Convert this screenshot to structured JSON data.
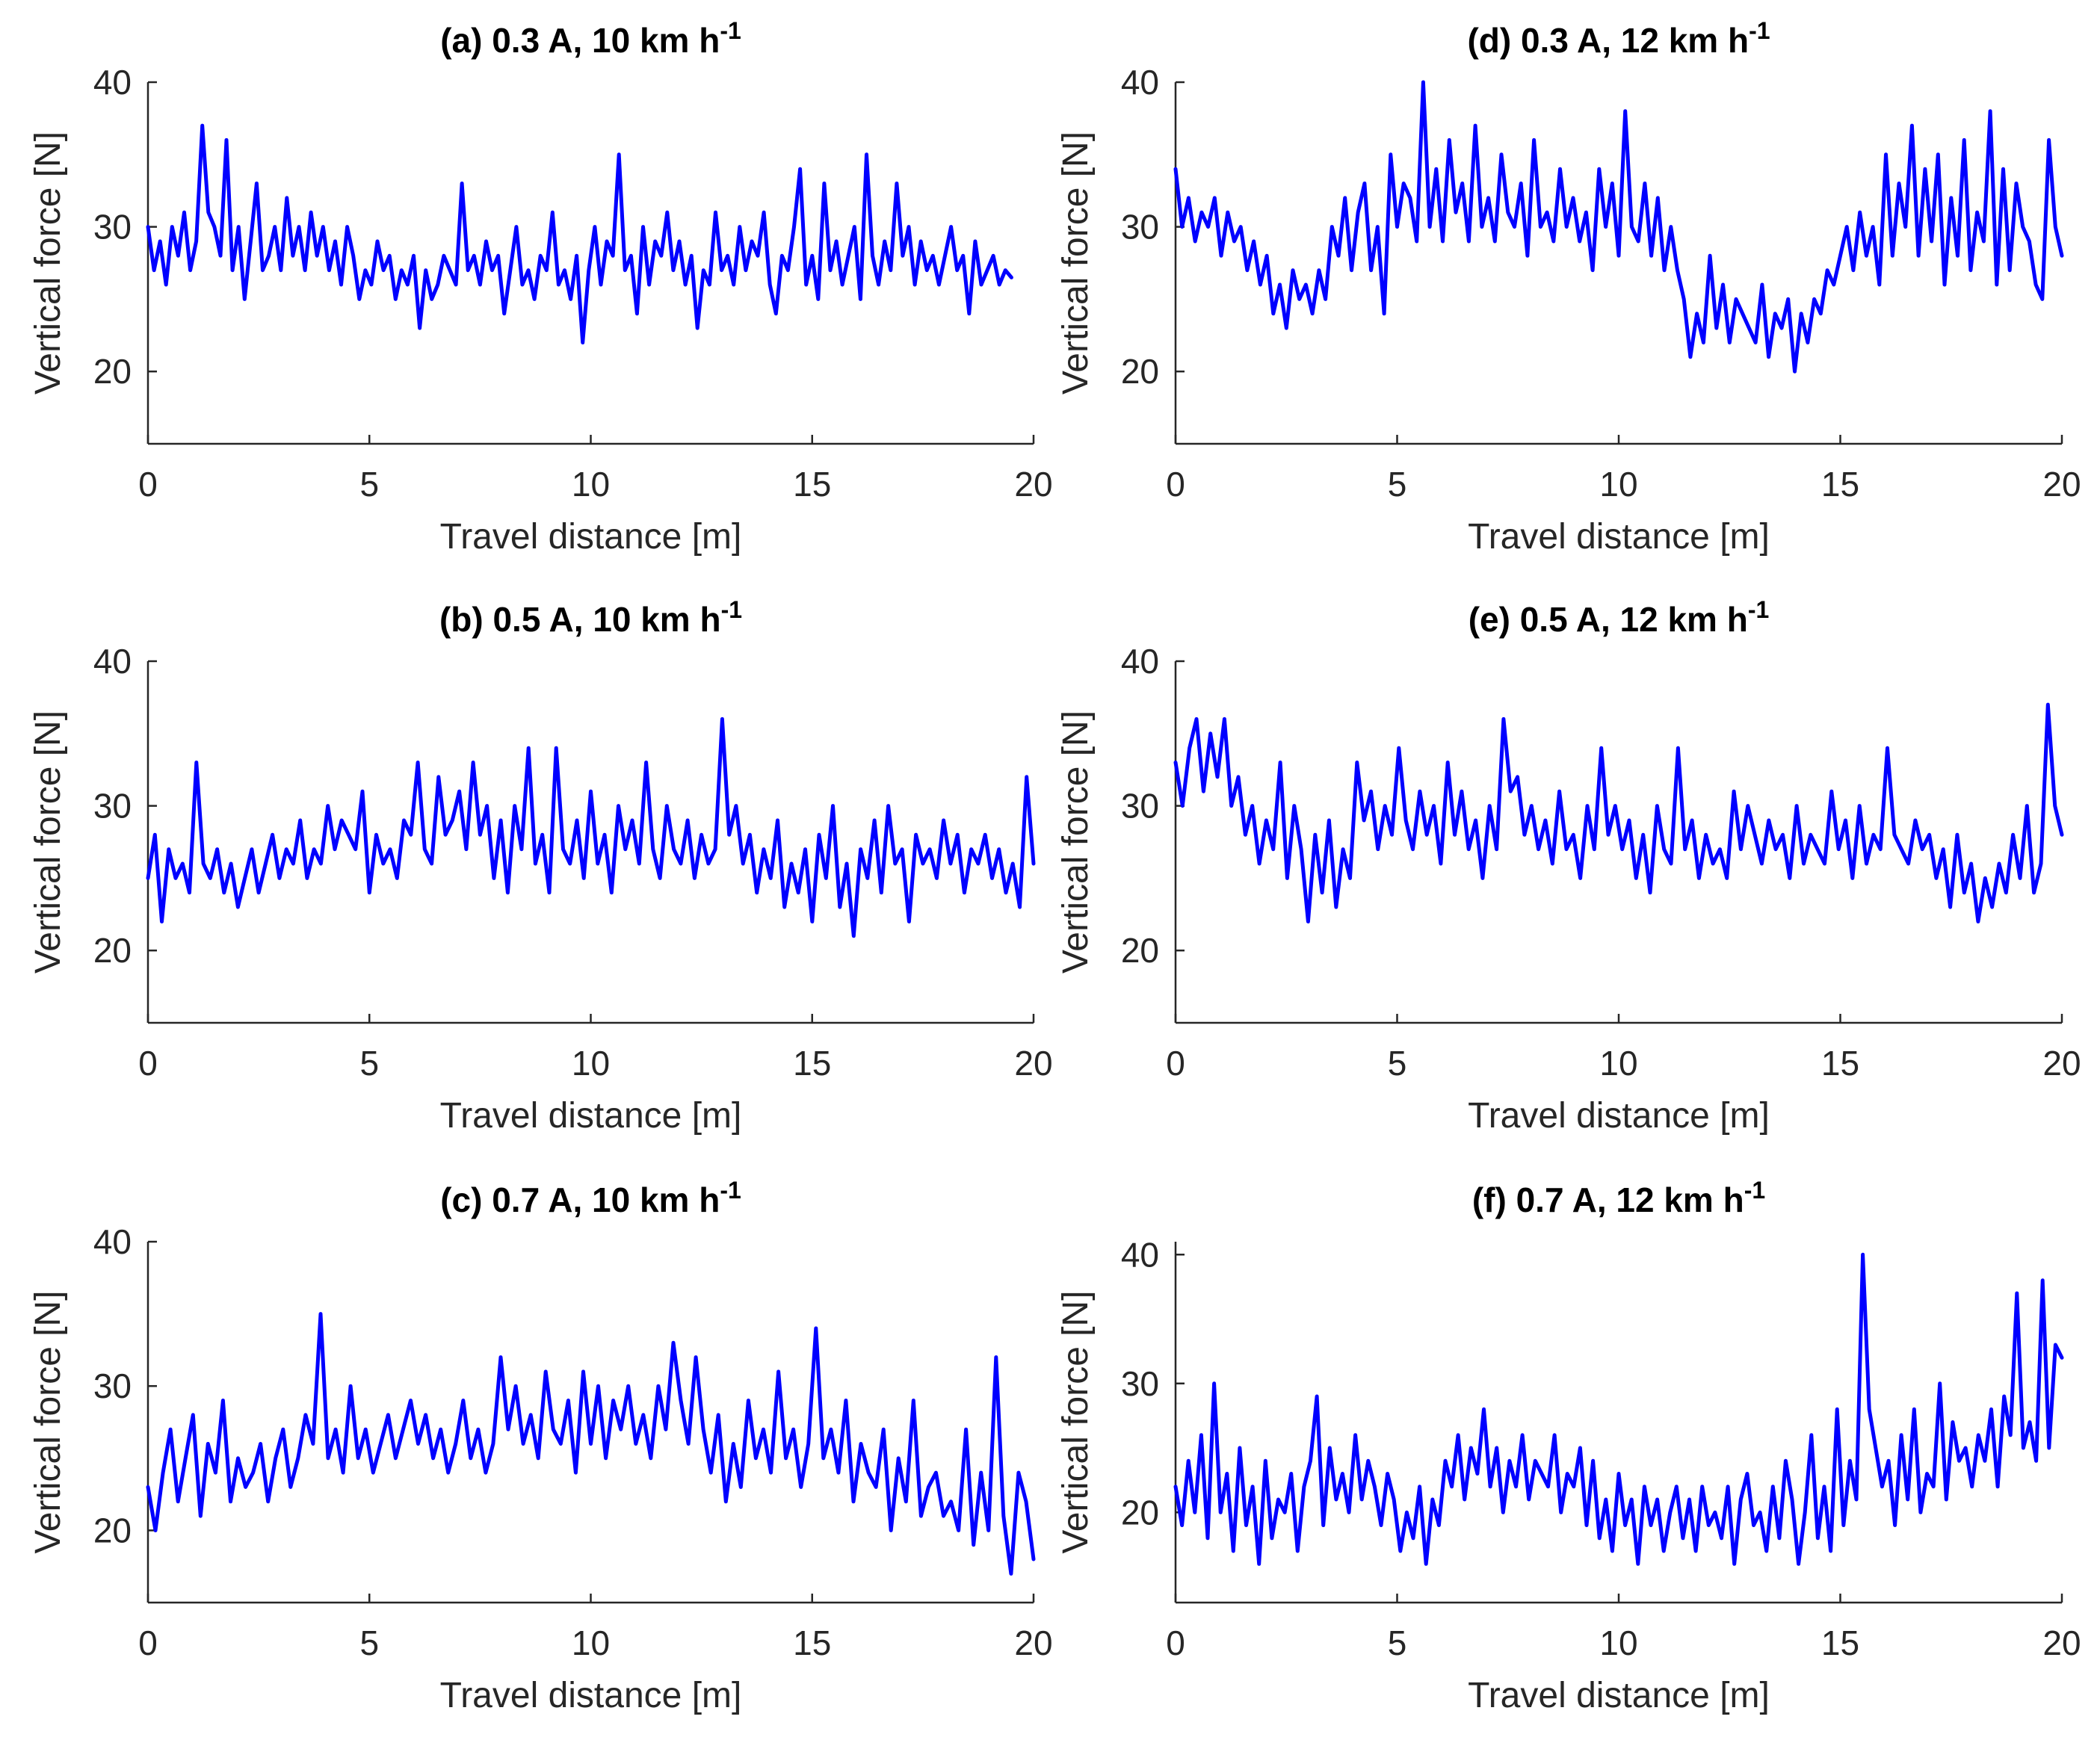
{
  "colors": {
    "series": "#0000ff",
    "axis": "#262626",
    "background": "#ffffff"
  },
  "chart_data": [
    {
      "type": "line",
      "panel": "a",
      "title": "(a) 0.3 A, 10 km h",
      "title_sup": "-1",
      "xlabel": "Travel distance [m]",
      "ylabel": "Vertical force [N]",
      "xlim": [
        0,
        20
      ],
      "ylim": [
        15,
        40
      ],
      "xticks": [
        0,
        5,
        10,
        15,
        20
      ],
      "xtick_labels": [
        "0",
        "5",
        "10",
        "15",
        "20"
      ],
      "yticks": [
        20,
        30,
        40
      ],
      "ytick_labels": [
        "20",
        "30",
        "40"
      ],
      "grid": false,
      "series": [
        {
          "name": "0.3 A, 10 km h-1",
          "x_end": 19.5,
          "values": [
            30,
            27,
            29,
            26,
            30,
            28,
            31,
            27,
            29,
            37,
            31,
            30,
            28,
            36,
            27,
            30,
            25,
            29,
            33,
            27,
            28,
            30,
            27,
            32,
            28,
            30,
            27,
            31,
            28,
            30,
            27,
            29,
            26,
            30,
            28,
            25,
            27,
            26,
            29,
            27,
            28,
            25,
            27,
            26,
            28,
            23,
            27,
            25,
            26,
            28,
            27,
            26,
            33,
            27,
            28,
            26,
            29,
            27,
            28,
            24,
            27,
            30,
            26,
            27,
            25,
            28,
            27,
            31,
            26,
            27,
            25,
            28,
            22,
            27,
            30,
            26,
            29,
            28,
            35,
            27,
            28,
            24,
            30,
            26,
            29,
            28,
            31,
            27,
            29,
            26,
            28,
            23,
            27,
            26,
            31,
            27,
            28,
            26,
            30,
            27,
            29,
            28,
            31,
            26,
            24,
            28,
            27,
            30,
            34,
            26,
            28,
            25,
            33,
            27,
            29,
            26,
            28,
            30,
            25,
            35,
            28,
            26,
            29,
            27,
            33,
            28,
            30,
            26,
            29,
            27,
            28,
            26,
            28,
            30,
            27,
            28,
            24,
            29,
            26,
            27,
            28,
            26,
            27,
            26.5
          ]
        }
      ]
    },
    {
      "type": "line",
      "panel": "b",
      "title": "(b) 0.5 A, 10 km h",
      "title_sup": "-1",
      "xlabel": "Travel distance [m]",
      "ylabel": "Vertical force [N]",
      "xlim": [
        0,
        20
      ],
      "ylim": [
        15,
        40
      ],
      "xticks": [
        0,
        5,
        10,
        15,
        20
      ],
      "xtick_labels": [
        "0",
        "5",
        "10",
        "15",
        "20"
      ],
      "yticks": [
        20,
        30,
        40
      ],
      "ytick_labels": [
        "20",
        "30",
        "40"
      ],
      "grid": false,
      "series": [
        {
          "name": "0.5 A, 10 km h-1",
          "x_end": 20,
          "values": [
            25,
            28,
            22,
            27,
            25,
            26,
            24,
            33,
            26,
            25,
            27,
            24,
            26,
            23,
            25,
            27,
            24,
            26,
            28,
            25,
            27,
            26,
            29,
            25,
            27,
            26,
            30,
            27,
            29,
            28,
            27,
            31,
            24,
            28,
            26,
            27,
            25,
            29,
            28,
            33,
            27,
            26,
            32,
            28,
            29,
            31,
            27,
            33,
            28,
            30,
            25,
            29,
            24,
            30,
            27,
            34,
            26,
            28,
            24,
            34,
            27,
            26,
            29,
            25,
            31,
            26,
            28,
            24,
            30,
            27,
            29,
            26,
            33,
            27,
            25,
            30,
            27,
            26,
            29,
            25,
            28,
            26,
            27,
            36,
            28,
            30,
            26,
            28,
            24,
            27,
            25,
            29,
            23,
            26,
            24,
            27,
            22,
            28,
            25,
            30,
            23,
            26,
            21,
            27,
            25,
            29,
            24,
            30,
            26,
            27,
            22,
            28,
            26,
            27,
            25,
            29,
            26,
            28,
            24,
            27,
            26,
            28,
            25,
            27,
            24,
            26,
            23,
            32,
            26
          ]
        }
      ]
    },
    {
      "type": "line",
      "panel": "c",
      "title": "(c) 0.7 A, 10 km h",
      "title_sup": "-1",
      "xlabel": "Travel distance [m]",
      "ylabel": "Vertical force [N]",
      "xlim": [
        0,
        20
      ],
      "ylim": [
        15,
        40
      ],
      "xticks": [
        0,
        5,
        10,
        15,
        20
      ],
      "xtick_labels": [
        "0",
        "5",
        "10",
        "15",
        "20"
      ],
      "yticks": [
        20,
        30,
        40
      ],
      "ytick_labels": [
        "20",
        "30",
        "40"
      ],
      "grid": false,
      "series": [
        {
          "name": "0.7 A, 10 km h-1",
          "x_end": 20,
          "values": [
            23,
            20,
            24,
            27,
            22,
            25,
            28,
            21,
            26,
            24,
            29,
            22,
            25,
            23,
            24,
            26,
            22,
            25,
            27,
            23,
            25,
            28,
            26,
            35,
            25,
            27,
            24,
            30,
            25,
            27,
            24,
            26,
            28,
            25,
            27,
            29,
            26,
            28,
            25,
            27,
            24,
            26,
            29,
            25,
            27,
            24,
            26,
            32,
            27,
            30,
            26,
            28,
            25,
            31,
            27,
            26,
            29,
            24,
            31,
            26,
            30,
            25,
            29,
            27,
            30,
            26,
            28,
            25,
            30,
            27,
            33,
            29,
            26,
            32,
            27,
            24,
            28,
            22,
            26,
            23,
            29,
            25,
            27,
            24,
            31,
            25,
            27,
            23,
            26,
            34,
            25,
            27,
            24,
            29,
            22,
            26,
            24,
            23,
            27,
            20,
            25,
            22,
            29,
            21,
            23,
            24,
            21,
            22,
            20,
            27,
            19,
            24,
            20,
            32,
            21,
            17,
            24,
            22,
            18
          ]
        }
      ]
    },
    {
      "type": "line",
      "panel": "d",
      "title": "(d) 0.3 A, 12 km h",
      "title_sup": "-1",
      "xlabel": "Travel distance [m]",
      "ylabel": "Vertical force [N]",
      "xlim": [
        0,
        20
      ],
      "ylim": [
        15,
        40
      ],
      "xticks": [
        0,
        5,
        10,
        15,
        20
      ],
      "xtick_labels": [
        "0",
        "5",
        "10",
        "15",
        "20"
      ],
      "yticks": [
        20,
        30,
        40
      ],
      "ytick_labels": [
        "20",
        "30",
        "40"
      ],
      "grid": false,
      "series": [
        {
          "name": "0.3 A, 12 km h-1",
          "x_end": 20,
          "values": [
            34,
            30,
            32,
            29,
            31,
            30,
            32,
            28,
            31,
            29,
            30,
            27,
            29,
            26,
            28,
            24,
            26,
            23,
            27,
            25,
            26,
            24,
            27,
            25,
            30,
            28,
            32,
            27,
            31,
            33,
            27,
            30,
            24,
            35,
            30,
            33,
            32,
            29,
            40,
            30,
            34,
            29,
            36,
            31,
            33,
            29,
            37,
            30,
            32,
            29,
            35,
            31,
            30,
            33,
            28,
            36,
            30,
            31,
            29,
            34,
            30,
            32,
            29,
            31,
            27,
            34,
            30,
            33,
            28,
            38,
            30,
            29,
            33,
            28,
            32,
            27,
            30,
            27,
            25,
            21,
            24,
            22,
            28,
            23,
            26,
            22,
            25,
            24,
            23,
            22,
            26,
            21,
            24,
            23,
            25,
            20,
            24,
            22,
            25,
            24,
            27,
            26,
            28,
            30,
            27,
            31,
            28,
            30,
            26,
            35,
            28,
            33,
            30,
            37,
            28,
            34,
            29,
            35,
            26,
            32,
            28,
            36,
            27,
            31,
            29,
            38,
            26,
            34,
            27,
            33,
            30,
            29,
            26,
            25,
            36,
            30,
            28
          ]
        }
      ]
    },
    {
      "type": "line",
      "panel": "e",
      "title": "(e) 0.5 A, 12 km h",
      "title_sup": "-1",
      "xlabel": "Travel distance [m]",
      "ylabel": "Vertical force [N]",
      "xlim": [
        0,
        20
      ],
      "ylim": [
        15,
        40
      ],
      "xticks": [
        0,
        5,
        10,
        15,
        20
      ],
      "xtick_labels": [
        "0",
        "5",
        "10",
        "15",
        "20"
      ],
      "yticks": [
        20,
        30,
        40
      ],
      "ytick_labels": [
        "20",
        "30",
        "40"
      ],
      "grid": false,
      "series": [
        {
          "name": "0.5 A, 12 km h-1",
          "x_end": 20,
          "values": [
            33,
            30,
            34,
            36,
            31,
            35,
            32,
            36,
            30,
            32,
            28,
            30,
            26,
            29,
            27,
            33,
            25,
            30,
            27,
            22,
            28,
            24,
            29,
            23,
            27,
            25,
            33,
            29,
            31,
            27,
            30,
            28,
            34,
            29,
            27,
            31,
            28,
            30,
            26,
            33,
            28,
            31,
            27,
            29,
            25,
            30,
            27,
            36,
            31,
            32,
            28,
            30,
            27,
            29,
            26,
            31,
            27,
            28,
            25,
            30,
            27,
            34,
            28,
            30,
            27,
            29,
            25,
            28,
            24,
            30,
            27,
            26,
            34,
            27,
            29,
            25,
            28,
            26,
            27,
            25,
            31,
            27,
            30,
            28,
            26,
            29,
            27,
            28,
            25,
            30,
            26,
            28,
            27,
            26,
            31,
            27,
            29,
            25,
            30,
            26,
            28,
            27,
            34,
            28,
            27,
            26,
            29,
            27,
            28,
            25,
            27,
            23,
            28,
            24,
            26,
            22,
            25,
            23,
            26,
            24,
            28,
            25,
            30,
            24,
            26,
            37,
            30,
            28
          ]
        }
      ]
    },
    {
      "type": "line",
      "panel": "f",
      "title": "(f) 0.7 A, 12 km h",
      "title_sup": "-1",
      "xlabel": "Travel distance [m]",
      "ylabel": "Vertical force [N]",
      "xlim": [
        0,
        20
      ],
      "ylim": [
        13,
        41
      ],
      "xticks": [
        0,
        5,
        10,
        15,
        20
      ],
      "xtick_labels": [
        "0",
        "5",
        "10",
        "15",
        "20"
      ],
      "yticks": [
        20,
        30,
        40
      ],
      "ytick_labels": [
        "20",
        "30",
        "40"
      ],
      "grid": false,
      "series": [
        {
          "name": "0.7 A, 12 km h-1",
          "x_end": 20,
          "values": [
            22,
            19,
            24,
            20,
            26,
            18,
            30,
            20,
            23,
            17,
            25,
            19,
            22,
            16,
            24,
            18,
            21,
            20,
            23,
            17,
            22,
            24,
            29,
            19,
            25,
            21,
            23,
            20,
            26,
            21,
            24,
            22,
            19,
            23,
            21,
            17,
            20,
            18,
            22,
            16,
            21,
            19,
            24,
            22,
            26,
            21,
            25,
            23,
            28,
            22,
            25,
            20,
            24,
            22,
            26,
            21,
            24,
            23,
            22,
            26,
            20,
            23,
            22,
            25,
            19,
            24,
            18,
            21,
            17,
            23,
            19,
            21,
            16,
            22,
            19,
            21,
            17,
            20,
            22,
            18,
            21,
            17,
            22,
            19,
            20,
            18,
            22,
            16,
            21,
            23,
            19,
            20,
            17,
            22,
            18,
            24,
            21,
            16,
            20,
            26,
            18,
            22,
            17,
            28,
            19,
            24,
            21,
            40,
            28,
            25,
            22,
            24,
            19,
            26,
            21,
            28,
            20,
            23,
            22,
            30,
            21,
            27,
            24,
            25,
            22,
            26,
            24,
            28,
            22,
            29,
            26,
            37,
            25,
            27,
            24,
            38,
            25,
            33,
            32
          ]
        }
      ]
    }
  ]
}
